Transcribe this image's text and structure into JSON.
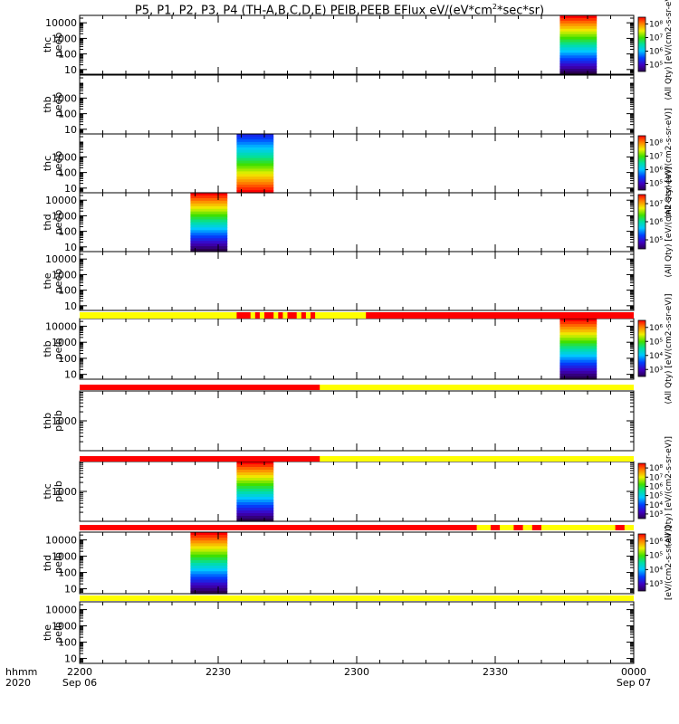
{
  "title": {
    "prefix": "P5, P1, P2, P3, P4 (TH-A,B,C,D,E) PEIB,PEEB EFlux eV/(eV*cm",
    "sup1": "2",
    "suffix": "*sec*sr)"
  },
  "chart_data": {
    "type": "heatmap",
    "x_range": [
      "2020-09-06T22:00",
      "2020-09-07T00:00"
    ],
    "x_ticks": [
      "2200",
      "2230",
      "2300",
      "2330",
      "0000"
    ],
    "x_dates": [
      "Sep 06",
      "Sep 07"
    ],
    "time_labels": [
      "hhmm",
      "2020"
    ],
    "colormap": "rainbow (purple-blue-cyan-green-yellow-red)",
    "panels": [
      {
        "label": [
          "thc",
          "peeb"
        ],
        "ylim": [
          5,
          30000
        ],
        "log": true,
        "y_ticks": [
          "10",
          "100",
          "1000",
          "10000"
        ],
        "data_time": [
          "23:44",
          "23:52"
        ],
        "colorbar": {
          "ticks": [
            "10⁵",
            "10⁶",
            "10⁷",
            "10⁸"
          ],
          "label": "(All Qty) [eV/(cm2-s-sr-eV)]"
        }
      },
      {
        "label": [
          "thb",
          "peeb"
        ],
        "ylim": [
          5,
          30000
        ],
        "log": true,
        "y_ticks": [
          "10",
          "100",
          "1000"
        ],
        "data_time": null,
        "colorbar": null
      },
      {
        "label": [
          "thc",
          "peeb"
        ],
        "ylim": [
          5,
          30000
        ],
        "log": true,
        "y_ticks": [
          "10",
          "100",
          "1000"
        ],
        "data_time": [
          "22:34",
          "22:42"
        ],
        "colorbar": {
          "ticks": [
            "10⁵",
            "10⁶",
            "10⁷",
            "10⁸"
          ],
          "label": "(All Qty) [eV/(cm2-s-sr-eV)]"
        }
      },
      {
        "label": [
          "thd",
          "peeb"
        ],
        "ylim": [
          5,
          30000
        ],
        "log": true,
        "y_ticks": [
          "10",
          "100",
          "1000",
          "10000"
        ],
        "data_time": [
          "22:24",
          "22:32"
        ],
        "colorbar": {
          "ticks": [
            "10⁵",
            "10⁶",
            "10⁷"
          ],
          "label": "(All Qty) [eV/(cm2-s-sr-eV)]"
        }
      },
      {
        "label": [
          "the",
          "peeb"
        ],
        "ylim": [
          5,
          30000
        ],
        "log": true,
        "y_ticks": [
          "10",
          "100",
          "1000",
          "10000"
        ],
        "data_time": null,
        "colorbar": null
      },
      {
        "label": [
          "thb",
          "peib"
        ],
        "ylim": [
          5,
          30000
        ],
        "log": true,
        "y_ticks": [
          "10",
          "100",
          "1000",
          "10000"
        ],
        "data_time": [
          "23:44",
          "23:52"
        ],
        "colorbar": {
          "ticks": [
            "10³",
            "10⁴",
            "10⁵",
            "10⁶"
          ],
          "label": "(All Qty) [eV/(cm2-s-sr-eV)]"
        }
      },
      {
        "label": [
          "thb",
          "peib"
        ],
        "ylim": [
          100,
          10000
        ],
        "log": true,
        "y_ticks": [
          "1000"
        ],
        "data_time": null,
        "colorbar": null
      },
      {
        "label": [
          "thc",
          "peib"
        ],
        "ylim": [
          100,
          10000
        ],
        "log": true,
        "y_ticks": [
          "1000"
        ],
        "data_time": [
          "22:34",
          "22:42"
        ],
        "colorbar": {
          "ticks": [
            "10³",
            "10⁴",
            "10⁵",
            "10⁶",
            "10⁷",
            "10⁸"
          ],
          "label": "(All Qty) [eV/(cm2-s-sr-eV)]"
        }
      },
      {
        "label": [
          "thd",
          "peib"
        ],
        "ylim": [
          5,
          30000
        ],
        "log": true,
        "y_ticks": [
          "10",
          "100",
          "1000",
          "10000"
        ],
        "data_time": [
          "22:24",
          "22:32"
        ],
        "colorbar": {
          "ticks": [
            "10³",
            "10⁴",
            "10⁵",
            "10⁶"
          ],
          "label": "[eV/(cm2-s-sr-eV)]"
        }
      },
      {
        "label": [
          "the",
          "peib"
        ],
        "ylim": [
          5,
          30000
        ],
        "log": true,
        "y_ticks": [
          "10",
          "100",
          "1000",
          "10000"
        ],
        "data_time": null,
        "colorbar": null
      }
    ],
    "mode_bars": [
      {
        "after_panel": 5,
        "base": "yellow",
        "segments": [
          {
            "color": "red",
            "from": "22:34",
            "to": "22:37"
          },
          {
            "color": "red",
            "from": "22:38",
            "to": "22:39"
          },
          {
            "color": "red",
            "from": "22:40",
            "to": "22:42"
          },
          {
            "color": "red",
            "from": "22:43",
            "to": "22:44"
          },
          {
            "color": "red",
            "from": "22:45",
            "to": "22:47"
          },
          {
            "color": "red",
            "from": "22:48",
            "to": "22:49"
          },
          {
            "color": "red",
            "from": "22:50",
            "to": "22:51"
          },
          {
            "color": "red",
            "from": "23:02",
            "to": "24:00"
          }
        ]
      },
      {
        "after_panel": 6,
        "base": "yellow",
        "segments": [
          {
            "color": "red",
            "from": "22:00",
            "to": "22:52"
          }
        ]
      },
      {
        "after_panel": 7,
        "base": "yellow",
        "segments": [
          {
            "color": "red",
            "from": "22:00",
            "to": "22:52"
          }
        ]
      },
      {
        "after_panel": 8,
        "base": "yellow",
        "segments": [
          {
            "color": "red",
            "from": "22:00",
            "to": "23:26"
          },
          {
            "color": "red",
            "from": "23:29",
            "to": "23:31"
          },
          {
            "color": "red",
            "from": "23:34",
            "to": "23:36"
          },
          {
            "color": "red",
            "from": "23:38",
            "to": "23:40"
          },
          {
            "color": "red",
            "from": "23:56",
            "to": "23:58"
          }
        ]
      },
      {
        "after_panel": 9,
        "base": "yellow",
        "segments": []
      }
    ]
  }
}
